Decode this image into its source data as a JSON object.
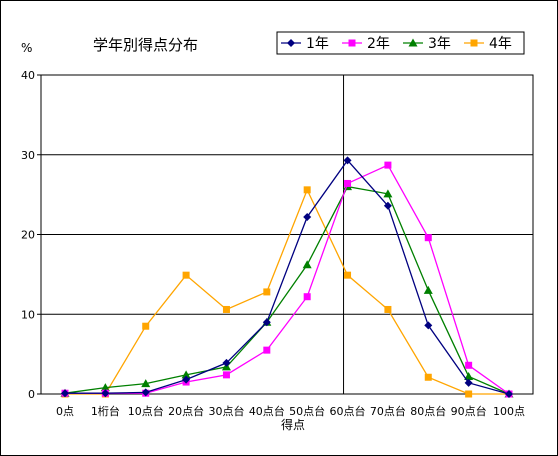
{
  "chart_data": {
    "type": "line",
    "title": "学年別得点分布",
    "xlabel": "得点",
    "ylabel": "%",
    "ylim": [
      0,
      40
    ],
    "yticks": [
      0,
      10,
      20,
      30,
      40
    ],
    "grid": "horizontal",
    "vertical_reference_category": "60点台",
    "legend_position": "top-right",
    "categories": [
      "0点",
      "1桁台",
      "10点台",
      "20点台",
      "30点台",
      "40点台",
      "50点台",
      "60点台",
      "70点台",
      "80点台",
      "90点台",
      "100点"
    ],
    "series": [
      {
        "name": "1年",
        "color": "#000080",
        "marker": "diamond",
        "values": [
          0.1,
          0.1,
          0.2,
          1.8,
          3.9,
          9.0,
          22.2,
          29.3,
          23.6,
          8.6,
          1.4,
          0.0
        ]
      },
      {
        "name": "2年",
        "color": "#ff00ff",
        "marker": "square",
        "values": [
          0.1,
          0.1,
          0.1,
          1.5,
          2.4,
          5.5,
          12.2,
          26.4,
          28.7,
          19.6,
          3.6,
          0.0
        ]
      },
      {
        "name": "3年",
        "color": "#008000",
        "marker": "triangle",
        "values": [
          0.1,
          0.8,
          1.3,
          2.4,
          3.4,
          9.0,
          16.2,
          26.0,
          25.1,
          13.0,
          2.2,
          0.0
        ]
      },
      {
        "name": "4年",
        "color": "#ffa500",
        "marker": "square",
        "values": [
          0.0,
          0.0,
          8.5,
          14.9,
          10.6,
          12.8,
          25.6,
          14.9,
          10.6,
          2.1,
          0.0,
          0.0
        ]
      }
    ]
  }
}
